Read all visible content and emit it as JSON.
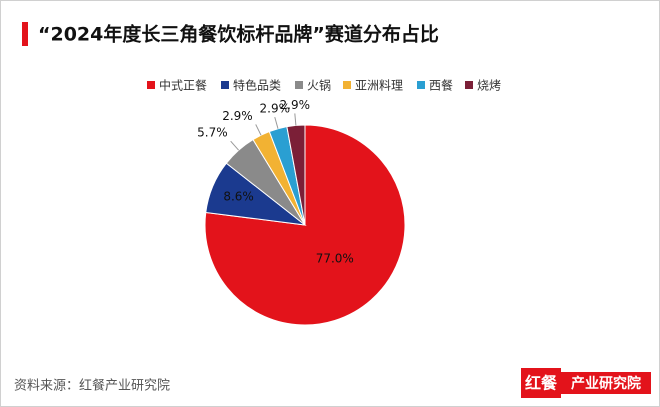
{
  "chart_data": {
    "type": "pie",
    "title": "“2024年度长三角餐饮标杆品牌”赛道分布占比",
    "categories": [
      "中式正餐",
      "特色品类",
      "火锅",
      "亚洲料理",
      "西餐",
      "烧烤"
    ],
    "values": [
      77.0,
      8.6,
      5.7,
      2.9,
      2.9,
      2.9
    ],
    "value_labels": [
      "77.0%",
      "8.6%",
      "5.7%",
      "2.9%",
      "2.9%",
      "2.9%"
    ],
    "colors": [
      "#e3131b",
      "#1b3a8f",
      "#8a8a8a",
      "#f2b233",
      "#2a9fd2",
      "#7b1f37"
    ],
    "legend": "top"
  },
  "footer": {
    "source": "资料来源：红餐产业研究院",
    "logo_mark": "红餐",
    "logo_text": "产业研究院"
  }
}
